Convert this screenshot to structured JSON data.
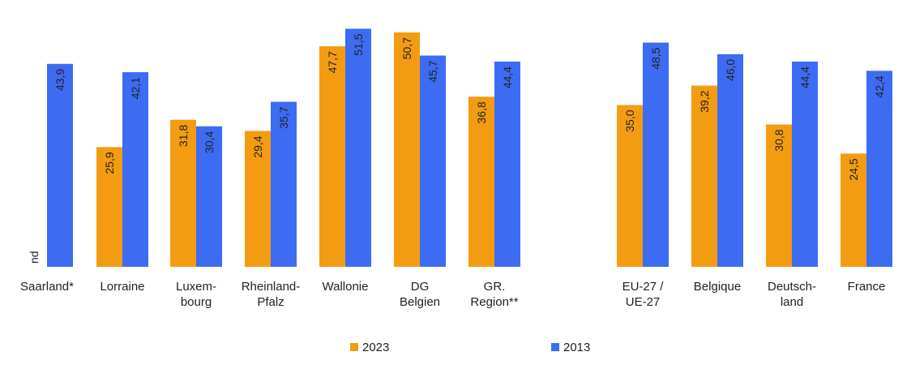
{
  "chart_data": {
    "type": "bar",
    "title": "",
    "xlabel": "",
    "ylabel": "",
    "ylim": [
      0,
      55
    ],
    "grid": false,
    "legend_position": "bottom",
    "categories": [
      [
        "Saarland*"
      ],
      [
        "Lorraine"
      ],
      [
        "Luxem-",
        "bourg"
      ],
      [
        "Rheinland-",
        "Pfalz"
      ],
      [
        "Wallonie"
      ],
      [
        "DG",
        "Belgien"
      ],
      [
        "GR.",
        "Region**"
      ],
      [
        "EU-27 /",
        "UE-27"
      ],
      [
        "Belgique"
      ],
      [
        "Deutsch-",
        "land"
      ],
      [
        "France"
      ]
    ],
    "series": [
      {
        "name": "2023",
        "color": "#F39C12",
        "values": [
          null,
          25.9,
          31.8,
          29.4,
          47.7,
          50.7,
          36.8,
          35.0,
          39.2,
          30.8,
          24.5
        ],
        "labels": [
          "nd",
          "25,9",
          "31,8",
          "29,4",
          "47,7",
          "50,7",
          "36,8",
          "35,0",
          "39,2",
          "30,8",
          "24,5"
        ]
      },
      {
        "name": "2013",
        "color": "#3D6BF2",
        "values": [
          43.9,
          42.1,
          30.4,
          35.7,
          51.5,
          45.7,
          44.4,
          48.5,
          46.0,
          44.4,
          42.4
        ],
        "labels": [
          "43,9",
          "42,1",
          "30,4",
          "35,7",
          "51,5",
          "45,7",
          "44,4",
          "48,5",
          "46,0",
          "44,4",
          "42,4"
        ]
      }
    ]
  }
}
